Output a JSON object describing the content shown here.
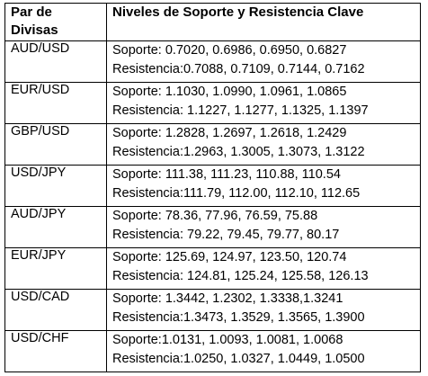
{
  "table": {
    "header": {
      "pair_line1": "Par de",
      "pair_line2": "Divisas",
      "levels": "Niveles de Soporte y Resistencia Clave"
    },
    "rows": [
      {
        "pair": "AUD/USD",
        "support": "Soporte: 0.7020, 0.6986, 0.6950, 0.6827",
        "resistance": "Resistencia:0.7088, 0.7109, 0.7144, 0.7162"
      },
      {
        "pair": "EUR/USD",
        "support": "Soporte: 1.1030, 1.0990, 1.0961, 1.0865",
        "resistance": "Resistencia: 1.1227, 1.1277, 1.1325, 1.1397"
      },
      {
        "pair": "GBP/USD",
        "support": "Soporte: 1.2828, 1.2697, 1.2618, 1.2429",
        "resistance": "Resistencia:1.2963, 1.3005, 1.3073, 1.3122"
      },
      {
        "pair": "USD/JPY",
        "support": "Soporte: 111.38, 111.23, 110.88, 110.54",
        "resistance": "Resistencia:111.79, 112.00, 112.10, 112.65"
      },
      {
        "pair": "AUD/JPY",
        "support": "Soporte: 78.36, 77.96, 76.59, 75.88",
        "resistance": "Resistencia: 79.22, 79.45, 79.77, 80.17"
      },
      {
        "pair": "EUR/JPY",
        "support": "Soporte: 125.69, 124.97, 123.50, 120.74",
        "resistance": "Resistencia: 124.81, 125.24, 125.58, 126.13"
      },
      {
        "pair": "USD/CAD",
        "support": "Soporte: 1.3442, 1.2302, 1.3338,1.3241",
        "resistance": "Resistencia:1.3473, 1.3529, 1.3565, 1.3900"
      },
      {
        "pair": "USD/CHF",
        "support": "Soporte:1.0131, 1.0093, 1.0081, 1.0068",
        "resistance": "Resistencia:1.0250, 1.0327, 1.0449, 1.0500"
      }
    ]
  }
}
